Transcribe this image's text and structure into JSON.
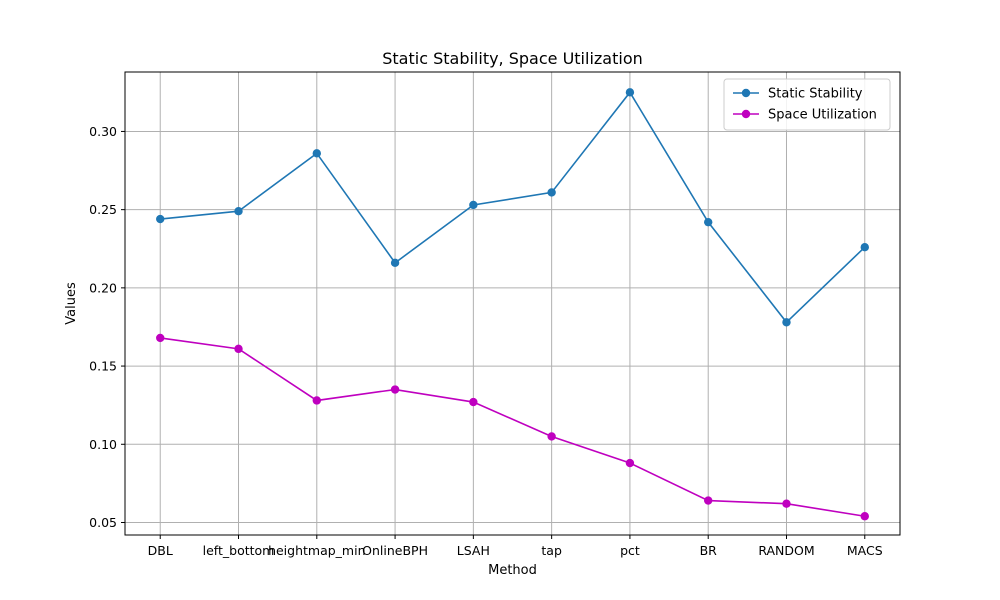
{
  "chart_data": {
    "type": "line",
    "title": "Static Stability, Space Utilization",
    "xlabel": "Method",
    "ylabel": "Values",
    "categories": [
      "DBL",
      "left_bottom",
      "heightmap_min",
      "OnlineBPH",
      "LSAH",
      "tap",
      "pct",
      "BR",
      "RANDOM",
      "MACS"
    ],
    "ylim": [
      0.042,
      0.338
    ],
    "yticks": [
      0.05,
      0.1,
      0.15,
      0.2,
      0.25,
      0.3
    ],
    "ytick_labels": [
      "0.05",
      "0.10",
      "0.15",
      "0.20",
      "0.25",
      "0.30"
    ],
    "grid": true,
    "legend_position": "top-right",
    "series": [
      {
        "name": "Static Stability",
        "color": "#1f77b4",
        "marker": "circle",
        "values": [
          0.244,
          0.249,
          0.286,
          0.216,
          0.253,
          0.261,
          0.325,
          0.242,
          0.178,
          0.226
        ]
      },
      {
        "name": "Space Utilization",
        "color": "#bf00bf",
        "marker": "circle",
        "values": [
          0.168,
          0.161,
          0.128,
          0.135,
          0.127,
          0.105,
          0.088,
          0.064,
          0.062,
          0.054
        ]
      }
    ]
  }
}
